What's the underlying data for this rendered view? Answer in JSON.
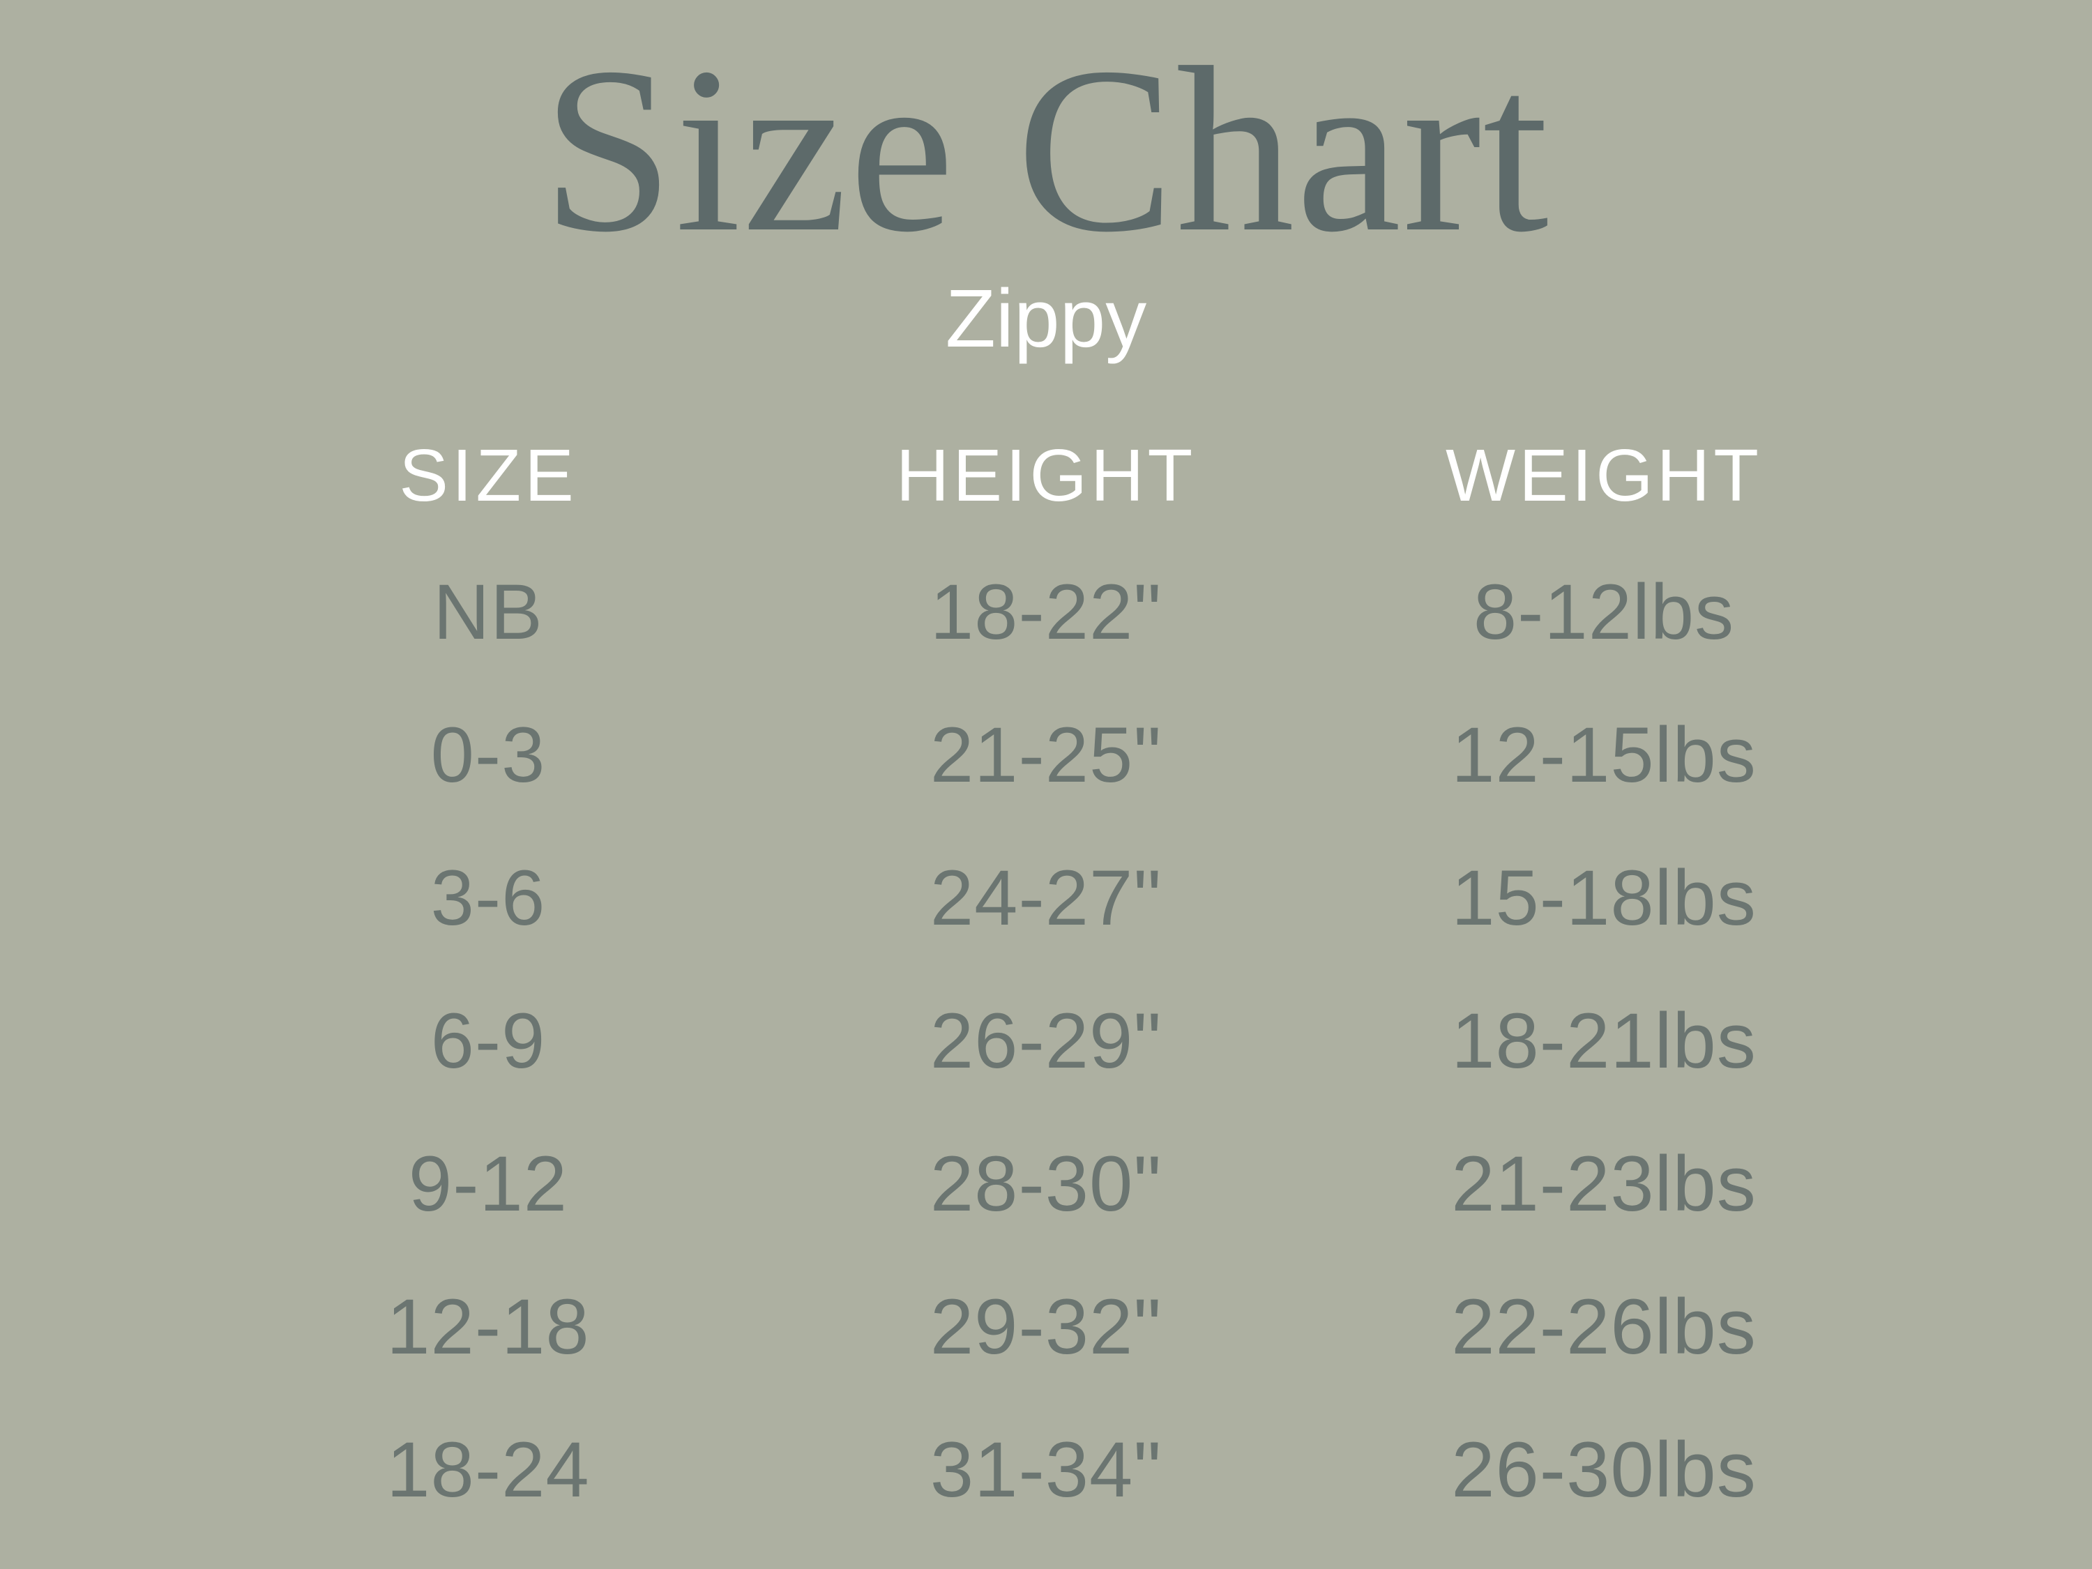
{
  "chart_data": {
    "type": "table",
    "title": "Size Chart",
    "subtitle": "Zippy",
    "columns": [
      "SIZE",
      "HEIGHT",
      "WEIGHT"
    ],
    "rows": [
      [
        "NB",
        "18-22\"",
        "8-12lbs"
      ],
      [
        "0-3",
        "21-25\"",
        "12-15lbs"
      ],
      [
        "3-6",
        "24-27\"",
        "15-18lbs"
      ],
      [
        "6-9",
        "26-29\"",
        "18-21lbs"
      ],
      [
        "9-12",
        "28-30\"",
        "21-23lbs"
      ],
      [
        "12-18",
        "29-32\"",
        "22-26lbs"
      ],
      [
        "18-24",
        "31-34\"",
        "26-30lbs"
      ]
    ]
  },
  "colors": {
    "background": "#adb0a1",
    "title_text": "#5d6a6a",
    "subtitle_text": "#ffffff",
    "header_text": "#ffffff",
    "cell_text": "#6b7571"
  }
}
